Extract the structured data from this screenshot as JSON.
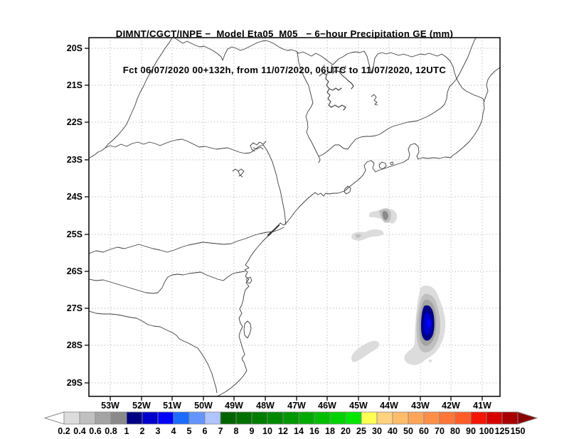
{
  "title": {
    "line1": "DIMNT/CGCT/INPE −  Model Eta05_M05_ − 6−hour Precipitation GE (mm)",
    "line2": "Fct 06/07/2020 00+132h, from 11/07/2020, 06UTC to 11/07/2020, 12UTC"
  },
  "map": {
    "region": "Southeast Brazil coastline, state borders and rivers",
    "lat_labels": [
      "20S",
      "21S",
      "22S",
      "23S",
      "24S",
      "25S",
      "26S",
      "27S",
      "28S",
      "29S"
    ],
    "lon_labels": [
      "53W",
      "52W",
      "51W",
      "50W",
      "49W",
      "48W",
      "47W",
      "46W",
      "45W",
      "44W",
      "43W",
      "42W",
      "41W"
    ]
  },
  "colorbar": {
    "unit": "mm",
    "tick_labels": [
      "0.2",
      "0.4",
      "0.6",
      "0.8",
      "1",
      "2",
      "3",
      "4",
      "5",
      "6",
      "7",
      "8",
      "9",
      "10",
      "12",
      "14",
      "16",
      "18",
      "20",
      "25",
      "30",
      "40",
      "50",
      "60",
      "70",
      "80",
      "90",
      "100",
      "125",
      "150"
    ],
    "cell_colors": [
      "#dcdcdc",
      "#c0c0c0",
      "#a4a4a4",
      "#8a8a8a",
      "#000085",
      "#0000cd",
      "#0202ff",
      "#1c6bff",
      "#6495ff",
      "#b0c4ff",
      "#006400",
      "#007000",
      "#007c00",
      "#008800",
      "#009600",
      "#00aa00",
      "#00be00",
      "#00d200",
      "#00e600",
      "#ffff54",
      "#ffd27d",
      "#ffbc6b",
      "#ffa55a",
      "#ff8e49",
      "#ff7638",
      "#ff5d28",
      "#f51505",
      "#d70000",
      "#a80000"
    ],
    "left_arrow_color": "#ffffff",
    "right_arrow_color": "#8b0000"
  },
  "precipitation_features": [
    {
      "name": "small-cell-A",
      "approx_position": "24.5S 44.2W",
      "peak_range_mm": "0.8–1"
    },
    {
      "name": "small-cell-B",
      "approx_position": "25.0S 44.7W",
      "peak_range_mm": "0.4–0.6"
    },
    {
      "name": "main-cell",
      "approx_position": "27.4S 42.7W",
      "peak_range_mm": "3–4"
    },
    {
      "name": "small-cell-C",
      "approx_position": "28.1S 44.8W",
      "peak_range_mm": "0.2–0.4"
    }
  ]
}
